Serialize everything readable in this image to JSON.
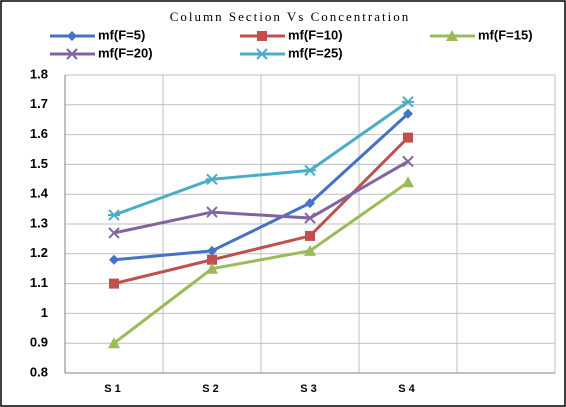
{
  "chart_data": {
    "type": "line",
    "title": "Column Section Vs Concentration",
    "categories": [
      "S1",
      "S2",
      "S3",
      "S4",
      null
    ],
    "series": [
      {
        "name": "mf(F=5)",
        "color": "#4472c4",
        "marker": "diamond",
        "values": [
          1.18,
          1.21,
          1.37,
          1.67,
          null
        ]
      },
      {
        "name": "mf(F=10)",
        "color": "#c0504d",
        "marker": "square",
        "values": [
          1.1,
          1.18,
          1.26,
          1.59,
          null
        ]
      },
      {
        "name": "mf(F=15)",
        "color": "#9bbb59",
        "marker": "triangle",
        "values": [
          0.9,
          1.15,
          1.21,
          1.44,
          null
        ]
      },
      {
        "name": "mf(F=20)",
        "color": "#8064a2",
        "marker": "x",
        "values": [
          1.27,
          1.34,
          1.32,
          1.51,
          null
        ]
      },
      {
        "name": "mf(F=25)",
        "color": "#4bacc6",
        "marker": "star",
        "values": [
          1.33,
          1.45,
          1.48,
          1.71,
          null
        ]
      }
    ],
    "ylim": [
      0.8,
      1.8
    ],
    "yticks": [
      0.8,
      0.9,
      1,
      1.1,
      1.2,
      1.3,
      1.4,
      1.5,
      1.6,
      1.7,
      1.8
    ],
    "grid": true,
    "legend": "top"
  }
}
